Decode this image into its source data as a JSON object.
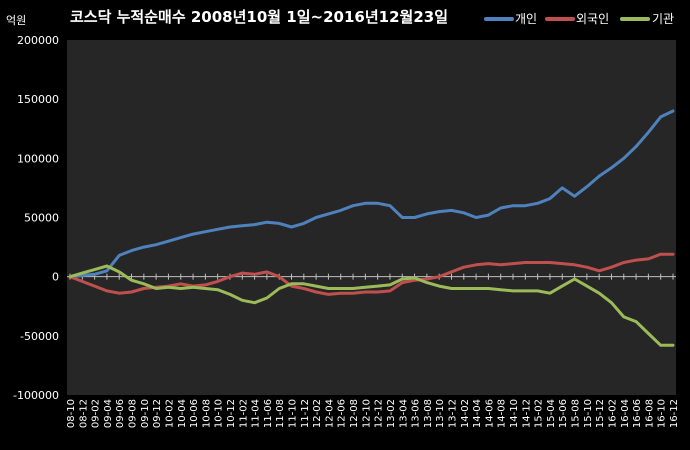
{
  "chart_data": {
    "type": "line",
    "title": "코스닥 누적순매수 2008년10월 1일~2016년12월23일",
    "y_unit": "억원",
    "ylim": [
      -100000,
      200000
    ],
    "yticks": [
      -100000,
      -50000,
      0,
      50000,
      100000,
      150000,
      200000
    ],
    "grid": false,
    "legend_position": "top-right",
    "categories": [
      "08-10",
      "08-12",
      "09-02",
      "09-04",
      "09-06",
      "09-08",
      "09-10",
      "09-12",
      "10-02",
      "10-04",
      "10-06",
      "10-08",
      "10-10",
      "10-12",
      "11-02",
      "11-04",
      "11-06",
      "11-08",
      "11-10",
      "11-12",
      "12-02",
      "12-04",
      "12-06",
      "12-08",
      "12-10",
      "12-12",
      "13-02",
      "13-04",
      "13-06",
      "13-08",
      "13-10",
      "13-12",
      "14-02",
      "14-04",
      "14-06",
      "14-08",
      "14-10",
      "14-12",
      "15-02",
      "15-04",
      "15-06",
      "15-08",
      "15-10",
      "15-12",
      "16-02",
      "16-04",
      "16-06",
      "16-08",
      "16-10",
      "16-12"
    ],
    "series": [
      {
        "name": "개인",
        "color": "#4F81BD",
        "values": [
          0,
          1000,
          2000,
          5000,
          18000,
          22000,
          25000,
          27000,
          30000,
          33000,
          36000,
          38000,
          40000,
          42000,
          43000,
          44000,
          46000,
          45000,
          42000,
          45000,
          50000,
          53000,
          56000,
          60000,
          62000,
          62000,
          60000,
          50000,
          50000,
          53000,
          55000,
          56000,
          54000,
          50000,
          52000,
          58000,
          60000,
          60000,
          62000,
          66000,
          75000,
          68000,
          76000,
          85000,
          92000,
          100000,
          110000,
          122000,
          135000,
          140000
        ]
      },
      {
        "name": "외국인",
        "color": "#C0504D",
        "values": [
          0,
          -4000,
          -8000,
          -12000,
          -14000,
          -13000,
          -10000,
          -9000,
          -8000,
          -6000,
          -8000,
          -7000,
          -4000,
          0,
          3000,
          2000,
          4000,
          0,
          -8000,
          -10000,
          -13000,
          -15000,
          -14000,
          -14000,
          -13000,
          -13000,
          -12000,
          -5000,
          -3000,
          -2000,
          0,
          4000,
          8000,
          10000,
          11000,
          10000,
          11000,
          12000,
          12000,
          12000,
          11000,
          10000,
          8000,
          5000,
          8000,
          12000,
          14000,
          15000,
          19000,
          19000
        ]
      },
      {
        "name": "기관",
        "color": "#9BBB59",
        "values": [
          0,
          3000,
          6000,
          9000,
          4000,
          -3000,
          -6000,
          -10000,
          -9000,
          -10000,
          -9000,
          -10000,
          -11000,
          -15000,
          -20000,
          -22000,
          -18000,
          -10000,
          -6000,
          -6000,
          -8000,
          -10000,
          -10000,
          -10000,
          -9000,
          -8000,
          -7000,
          -2000,
          -1000,
          -5000,
          -8000,
          -10000,
          -10000,
          -10000,
          -10000,
          -11000,
          -12000,
          -12000,
          -12000,
          -14000,
          -8000,
          -2000,
          -8000,
          -14000,
          -22000,
          -34000,
          -38000,
          -48000,
          -58000,
          -58000
        ]
      }
    ]
  }
}
